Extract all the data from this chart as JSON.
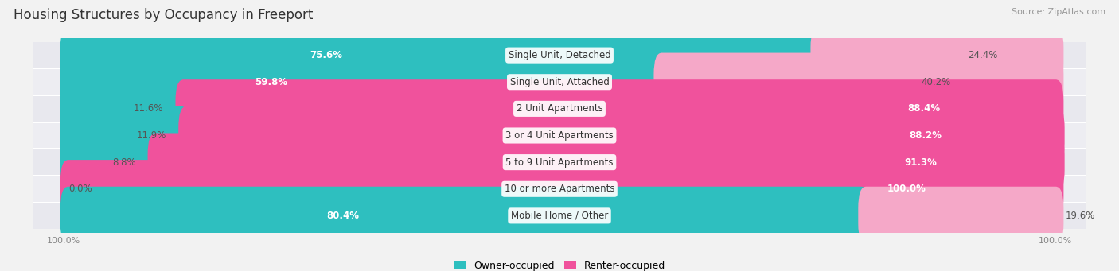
{
  "title": "Housing Structures by Occupancy in Freeport",
  "source": "Source: ZipAtlas.com",
  "categories": [
    "Single Unit, Detached",
    "Single Unit, Attached",
    "2 Unit Apartments",
    "3 or 4 Unit Apartments",
    "5 to 9 Unit Apartments",
    "10 or more Apartments",
    "Mobile Home / Other"
  ],
  "owner_pct": [
    75.6,
    59.8,
    11.6,
    11.9,
    8.8,
    0.0,
    80.4
  ],
  "renter_pct": [
    24.4,
    40.2,
    88.4,
    88.2,
    91.3,
    100.0,
    19.6
  ],
  "owner_color": "#2ebfbf",
  "renter_color_dark": "#f0529c",
  "renter_color_light": "#f5a8c8",
  "fig_bg": "#f2f2f2",
  "row_bg_even": "#e8e8ee",
  "row_bg_odd": "#ededf2",
  "bar_bg_color": "#d8d8e0",
  "title_fontsize": 12,
  "source_fontsize": 8,
  "bar_label_fontsize": 8.5,
  "category_fontsize": 8.5,
  "legend_fontsize": 9,
  "axis_label_fontsize": 8,
  "bar_height": 0.58
}
